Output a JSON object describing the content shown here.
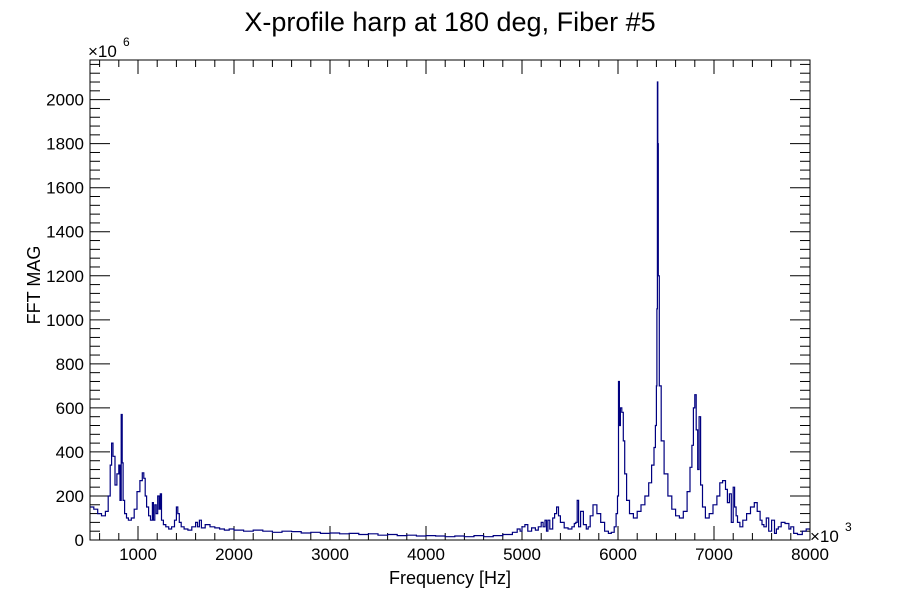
{
  "chart_data": {
    "type": "line",
    "title": "X-profile harp at 180 deg, Fiber #5",
    "xlabel": "Frequency [Hz]",
    "ylabel": "FFT MAG",
    "x_multiplier": "×10",
    "x_multiplier_exp": "3",
    "y_multiplier": "×10",
    "y_multiplier_exp": "6",
    "xlim": [
      500,
      8000
    ],
    "ylim": [
      0,
      2180
    ],
    "x_ticks": [
      1000,
      2000,
      3000,
      4000,
      5000,
      6000,
      7000,
      8000
    ],
    "y_ticks": [
      0,
      200,
      400,
      600,
      800,
      1000,
      1200,
      1400,
      1600,
      1800,
      2000
    ],
    "grid": false,
    "line_color": "#000080",
    "series": [
      {
        "x": [
          500,
          540,
          580,
          620,
          660,
          690,
          710,
          725,
          740,
          760,
          780,
          800,
          812,
          825,
          835,
          845,
          860,
          880,
          900,
          930,
          960,
          990,
          1020,
          1045,
          1060,
          1075,
          1090,
          1110,
          1130,
          1150,
          1160,
          1175,
          1190,
          1205,
          1220,
          1232,
          1245,
          1265,
          1290,
          1320,
          1350,
          1380,
          1400,
          1415,
          1430,
          1450,
          1480,
          1520,
          1560,
          1600,
          1620,
          1640,
          1660,
          1700,
          1750,
          1800,
          1850,
          1900,
          1950,
          2000,
          2100,
          2200,
          2300,
          2400,
          2500,
          2600,
          2700,
          2800,
          2900,
          3000,
          3100,
          3200,
          3300,
          3400,
          3500,
          3600,
          3700,
          3800,
          3900,
          4000,
          4100,
          4200,
          4300,
          4400,
          4500,
          4600,
          4700,
          4800,
          4900,
          4950,
          4980,
          5000,
          5030,
          5060,
          5100,
          5140,
          5170,
          5200,
          5220,
          5240,
          5255,
          5270,
          5290,
          5320,
          5340,
          5360,
          5380,
          5400,
          5440,
          5480,
          5520,
          5545,
          5560,
          5575,
          5590,
          5610,
          5640,
          5670,
          5690,
          5710,
          5740,
          5780,
          5820,
          5860,
          5900,
          5930,
          5960,
          5980,
          5995,
          6005,
          6015,
          6025,
          6040,
          6055,
          6070,
          6090,
          6120,
          6160,
          6200,
          6240,
          6280,
          6320,
          6350,
          6375,
          6390,
          6400,
          6405,
          6410,
          6415,
          6420,
          6430,
          6450,
          6480,
          6520,
          6560,
          6600,
          6640,
          6680,
          6720,
          6750,
          6770,
          6785,
          6800,
          6815,
          6830,
          6845,
          6860,
          6880,
          6910,
          6950,
          6990,
          7030,
          7060,
          7090,
          7120,
          7140,
          7160,
          7180,
          7200,
          7215,
          7230,
          7245,
          7270,
          7300,
          7340,
          7380,
          7420,
          7450,
          7480,
          7500,
          7520,
          7545,
          7570,
          7600,
          7630,
          7650,
          7670,
          7700,
          7740,
          7780,
          7800,
          7830,
          7870,
          7920,
          7960,
          8000
        ],
        "y": [
          150,
          140,
          120,
          110,
          130,
          200,
          340,
          440,
          380,
          250,
          300,
          340,
          180,
          570,
          350,
          180,
          120,
          100,
          90,
          100,
          140,
          220,
          270,
          305,
          280,
          200,
          150,
          110,
          90,
          170,
          90,
          160,
          120,
          200,
          140,
          210,
          90,
          70,
          60,
          50,
          60,
          90,
          150,
          120,
          80,
          60,
          50,
          45,
          60,
          80,
          60,
          90,
          55,
          70,
          60,
          55,
          50,
          45,
          50,
          45,
          40,
          45,
          40,
          35,
          40,
          38,
          32,
          35,
          30,
          32,
          28,
          30,
          25,
          28,
          22,
          25,
          20,
          22,
          18,
          20,
          18,
          15,
          18,
          15,
          20,
          15,
          20,
          25,
          35,
          50,
          40,
          60,
          70,
          40,
          55,
          45,
          60,
          80,
          60,
          90,
          40,
          90,
          50,
          100,
          120,
          150,
          110,
          80,
          55,
          50,
          60,
          75,
          80,
          180,
          60,
          130,
          70,
          50,
          60,
          110,
          160,
          120,
          80,
          40,
          30,
          35,
          60,
          120,
          200,
          720,
          520,
          600,
          580,
          450,
          300,
          180,
          120,
          100,
          130,
          160,
          200,
          260,
          340,
          420,
          520,
          700,
          1050,
          2080,
          1800,
          1200,
          700,
          450,
          300,
          200,
          140,
          110,
          100,
          130,
          220,
          330,
          430,
          600,
          660,
          500,
          320,
          560,
          250,
          150,
          100,
          120,
          160,
          200,
          260,
          270,
          230,
          170,
          210,
          80,
          240,
          150,
          110,
          80,
          60,
          90,
          120,
          150,
          170,
          130,
          90,
          70,
          60,
          100,
          40,
          90,
          30,
          50,
          60,
          80,
          75,
          50,
          60,
          30,
          25,
          40,
          50,
          45
        ]
      }
    ]
  }
}
